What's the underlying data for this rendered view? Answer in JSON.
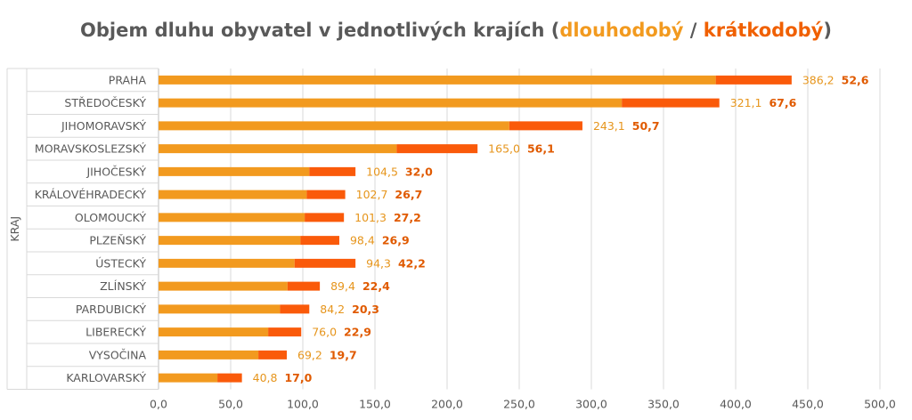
{
  "chart_data": {
    "type": "bar",
    "orientation": "horizontal",
    "stacked": true,
    "title": "Objem dluhu obyvatel v jednotlivých krajích (dlouhodobý / krátkodobý)",
    "title_parts": {
      "prefix": "Objem dluhu obyvatel v jednotlivých krajích (",
      "long": "dlouhodobý",
      "sep": " / ",
      "short": "krátkodobý",
      "suffix": ")"
    },
    "ylabel": "KRAJ",
    "xlabel": "",
    "xlim": [
      0,
      500
    ],
    "xticks": [
      "0,0",
      "50,0",
      "100,0",
      "150,0",
      "200,0",
      "250,0",
      "300,0",
      "350,0",
      "400,0",
      "450,0",
      "500,0"
    ],
    "grid": true,
    "categories": [
      "PRAHA",
      "STŘEDOČESKÝ",
      "JIHOMORAVSKÝ",
      "MORAVSKOSLEZSKÝ",
      "JIHOČESKÝ",
      "KRÁLOVÉHRADECKÝ",
      "OLOMOUCKÝ",
      "PLZEŇSKÝ",
      "ÚSTECKÝ",
      "ZLÍNSKÝ",
      "PARDUBICKÝ",
      "LIBERECKÝ",
      "VYSOČINA",
      "KARLOVARSKÝ"
    ],
    "series": [
      {
        "name": "dlouhodobý",
        "color": "#f29a1f",
        "values": [
          386.2,
          321.1,
          243.1,
          165.0,
          104.5,
          102.7,
          101.3,
          98.4,
          94.3,
          89.4,
          84.2,
          76.0,
          69.2,
          40.8
        ],
        "labels": [
          "386,2",
          "321,1",
          "243,1",
          "165,0",
          "104,5",
          "102,7",
          "101,3",
          "98,4",
          "94,3",
          "89,4",
          "84,2",
          "76,0",
          "69,2",
          "40,8"
        ]
      },
      {
        "name": "krátkodobý",
        "color": "#fa5a0a",
        "values": [
          52.6,
          67.6,
          50.7,
          56.1,
          32.0,
          26.7,
          27.2,
          26.9,
          42.2,
          22.4,
          20.3,
          22.9,
          19.7,
          17.0
        ],
        "labels": [
          "52,6",
          "67,6",
          "50,7",
          "56,1",
          "32,0",
          "26,7",
          "27,2",
          "26,9",
          "42,2",
          "22,4",
          "20,3",
          "22,9",
          "19,7",
          "17,0"
        ]
      }
    ]
  }
}
